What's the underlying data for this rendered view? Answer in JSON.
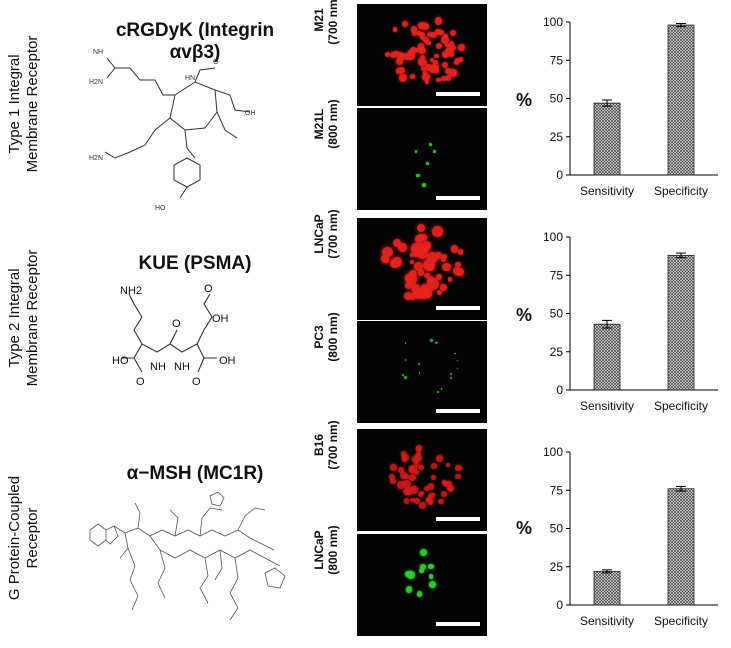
{
  "rows": [
    {
      "receptor_label_lines": [
        "Type 1 Integral",
        "Membrane Receptor"
      ],
      "compound_title": "cRGDyK (Integrin αvβ3)",
      "chem_labels": {
        "nh": "NH",
        "h2n": "H2N",
        "hn": "HN",
        "ho": "HO",
        "oh": "OH",
        "o": "O",
        "nh2": "H2N"
      },
      "images": [
        {
          "line1": "M21",
          "line2": "(700 nm)",
          "color": "#e8231f"
        },
        {
          "line1": "M21L",
          "line2": "(800 nm)",
          "color": "#2fd32a"
        }
      ]
    },
    {
      "receptor_label_lines": [
        "Type 2 Integral",
        "Membrane Receptor"
      ],
      "compound_title": "KUE (PSMA)",
      "chem_labels": {
        "nh2": "NH2",
        "o": "O",
        "oh": "OH",
        "ho": "HO",
        "nh": "NH"
      },
      "images": [
        {
          "line1": "LNCaP",
          "line2": "(700 nm)",
          "color": "#e8231f"
        },
        {
          "line1": "PC3",
          "line2": "(800 nm)",
          "color": "#2fd32a"
        }
      ]
    },
    {
      "receptor_label_lines": [
        "G Protein-Coupled",
        "Receptor"
      ],
      "compound_title": "α−MSH (MC1R)",
      "images": [
        {
          "line1": "B16",
          "line2": "(700 nm)",
          "color": "#d81e1a"
        },
        {
          "line1": "LNCaP",
          "line2": "(800 nm)",
          "color": "#2fd32a"
        }
      ]
    }
  ],
  "chart_data": [
    {
      "type": "bar",
      "categories": [
        "Sensitivity",
        "Specificity"
      ],
      "values": [
        47,
        98
      ],
      "errors": [
        2,
        1
      ],
      "ylabel": "%",
      "ylim": [
        0,
        100
      ],
      "yticks": [
        0,
        25,
        50,
        75,
        100
      ],
      "bar_pattern": "crosshatch"
    },
    {
      "type": "bar",
      "categories": [
        "Sensitivity",
        "Specificity"
      ],
      "values": [
        43,
        88
      ],
      "errors": [
        2.5,
        1.5
      ],
      "ylabel": "%",
      "ylim": [
        0,
        100
      ],
      "yticks": [
        0,
        25,
        50,
        75,
        100
      ],
      "bar_pattern": "crosshatch"
    },
    {
      "type": "bar",
      "categories": [
        "Sensitivity",
        "Specificity"
      ],
      "values": [
        22,
        76
      ],
      "errors": [
        1,
        1.5
      ],
      "ylabel": "%",
      "ylim": [
        0,
        100
      ],
      "yticks": [
        0,
        25,
        50,
        75,
        100
      ],
      "bar_pattern": "crosshatch"
    }
  ]
}
